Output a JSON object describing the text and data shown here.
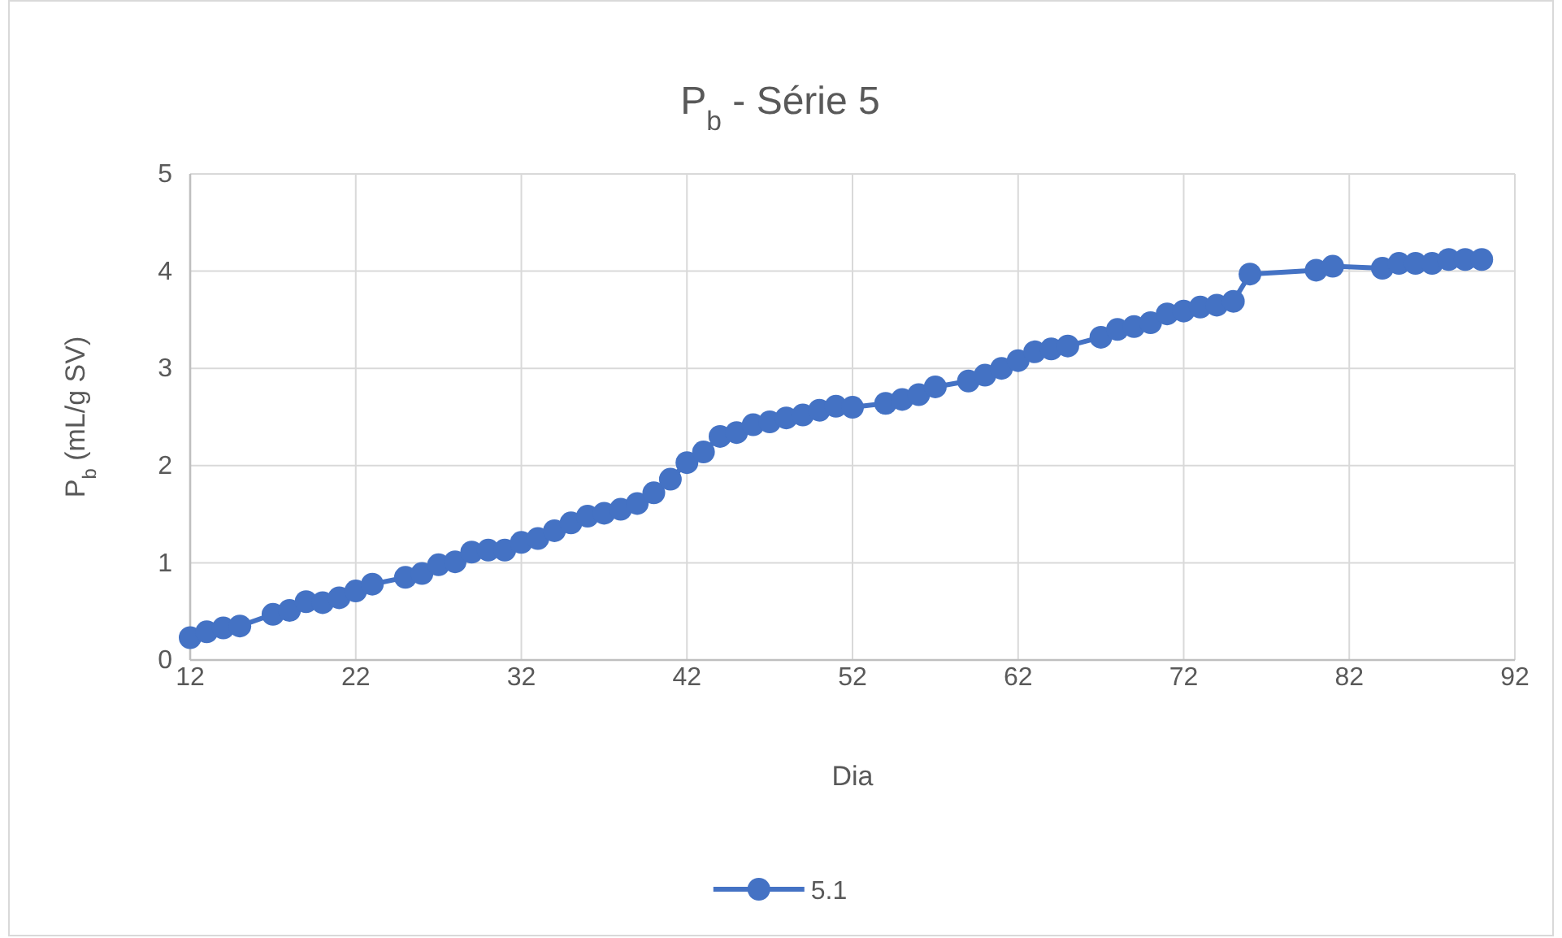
{
  "chart_data": {
    "type": "line",
    "title": "P$_{b}$ - Série 5",
    "xlabel": "Dia",
    "ylabel": "P$_{b}$ (mL/g SV)",
    "x": [
      12,
      13,
      14,
      15,
      17,
      18,
      19,
      20,
      21,
      22,
      23,
      25,
      26,
      27,
      28,
      29,
      30,
      31,
      32,
      33,
      34,
      35,
      36,
      37,
      38,
      39,
      40,
      41,
      42,
      43,
      44,
      45,
      46,
      47,
      48,
      49,
      50,
      51,
      52,
      54,
      55,
      56,
      57,
      59,
      60,
      61,
      62,
      63,
      64,
      65,
      67,
      68,
      69,
      70,
      71,
      72,
      73,
      74,
      75,
      76,
      80,
      81,
      84,
      85,
      86,
      87,
      88,
      89,
      90
    ],
    "series": [
      {
        "name": "5.1",
        "color": "#4472c4",
        "values": [
          0.23,
          0.29,
          0.33,
          0.35,
          0.47,
          0.51,
          0.6,
          0.59,
          0.64,
          0.71,
          0.78,
          0.85,
          0.89,
          0.98,
          1.01,
          1.11,
          1.13,
          1.13,
          1.21,
          1.25,
          1.33,
          1.41,
          1.48,
          1.51,
          1.55,
          1.61,
          1.72,
          1.86,
          2.03,
          2.14,
          2.3,
          2.34,
          2.42,
          2.45,
          2.49,
          2.52,
          2.57,
          2.61,
          2.6,
          2.64,
          2.68,
          2.73,
          2.81,
          2.87,
          2.93,
          3.0,
          3.08,
          3.17,
          3.2,
          3.23,
          3.32,
          3.4,
          3.43,
          3.47,
          3.56,
          3.59,
          3.63,
          3.65,
          3.69,
          3.97,
          4.01,
          4.05,
          4.03,
          4.08,
          4.08,
          4.08,
          4.12,
          4.12,
          4.12
        ]
      }
    ],
    "xlim": [
      12,
      92
    ],
    "xticks": [
      12,
      22,
      32,
      42,
      52,
      62,
      72,
      82,
      92
    ],
    "ylim": [
      0,
      5
    ],
    "yticks": [
      0,
      1,
      2,
      3,
      4,
      5
    ],
    "grid": true,
    "legend": "bottom",
    "marker": "circle",
    "line_style": "solid"
  }
}
